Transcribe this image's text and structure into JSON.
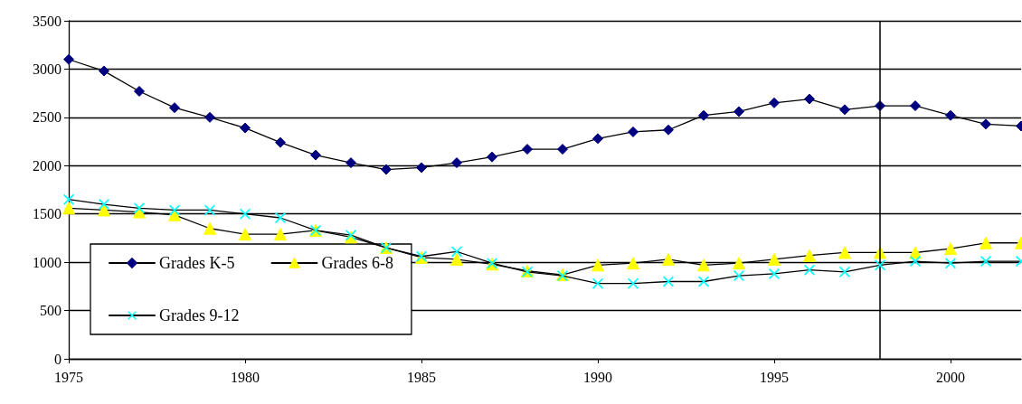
{
  "chart_data": {
    "type": "line",
    "x": [
      1975,
      1976,
      1977,
      1978,
      1979,
      1980,
      1981,
      1982,
      1983,
      1984,
      1985,
      1986,
      1987,
      1988,
      1989,
      1990,
      1991,
      1992,
      1993,
      1994,
      1995,
      1996,
      1997,
      1998,
      1999,
      2000,
      2001,
      2002
    ],
    "series": [
      {
        "name": "Grades K-5",
        "color": "#000080",
        "marker": "diamond",
        "values": [
          3100,
          2980,
          2770,
          2600,
          2500,
          2390,
          2240,
          2110,
          2030,
          1960,
          1980,
          2030,
          2090,
          2170,
          2170,
          2280,
          2350,
          2370,
          2520,
          2560,
          2650,
          2690,
          2580,
          2620,
          2620,
          2520,
          2430,
          2410
        ]
      },
      {
        "name": "Grades 6-8",
        "color": "#ffff00",
        "marker": "triangle",
        "values": [
          1560,
          1540,
          1520,
          1490,
          1350,
          1290,
          1290,
          1330,
          1260,
          1150,
          1050,
          1030,
          980,
          910,
          870,
          970,
          990,
          1030,
          970,
          990,
          1030,
          1070,
          1100,
          1100,
          1100,
          1140,
          1200,
          1200
        ]
      },
      {
        "name": "Grades 9-12",
        "color": "#00ffff",
        "marker": "cross",
        "values": [
          1650,
          1600,
          1560,
          1540,
          1540,
          1500,
          1460,
          1330,
          1280,
          1150,
          1060,
          1110,
          990,
          900,
          860,
          780,
          780,
          800,
          800,
          860,
          880,
          920,
          900,
          970,
          1010,
          990,
          1010,
          1010
        ]
      }
    ],
    "xlim": [
      1975,
      2002
    ],
    "xticks": [
      1975,
      1980,
      1985,
      1990,
      1995,
      2000
    ],
    "ylim": [
      0,
      3500
    ],
    "yticks": [
      0,
      500,
      1000,
      1500,
      2000,
      2500,
      3000,
      3500
    ],
    "ref_lines": [
      {
        "axis": "x",
        "value": 1998,
        "label": null
      }
    ],
    "grid": "y",
    "legend": "bottom left",
    "line_style": "solid"
  }
}
